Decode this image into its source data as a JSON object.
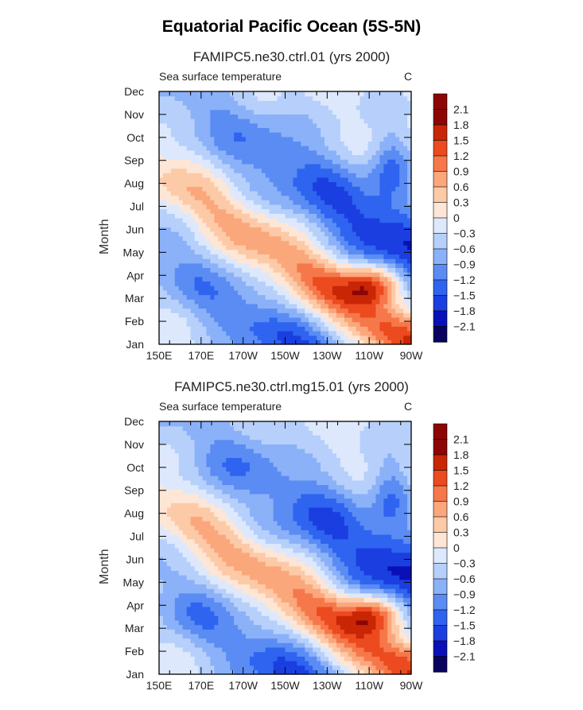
{
  "title": "Equatorial Pacific Ocean (5S-5N)",
  "chart_data": [
    {
      "type": "heatmap",
      "title": "FAMIPC5.ne30.ctrl.01 (yrs 2000)",
      "left_string": "Sea surface temperature",
      "right_string": "C",
      "ylabel": "Month",
      "x_ticks": [
        "150E",
        "170E",
        "170W",
        "150W",
        "130W",
        "110W",
        "90W"
      ],
      "x_values": [
        150,
        170,
        190,
        210,
        230,
        250,
        270
      ],
      "xlim": [
        150,
        270
      ],
      "y_ticks": [
        "Jan",
        "Feb",
        "Mar",
        "Apr",
        "May",
        "Jun",
        "Jul",
        "Aug",
        "Sep",
        "Oct",
        "Nov",
        "Dec"
      ],
      "ylim": [
        1,
        12
      ],
      "colorbar_labels": [
        "2.1",
        "1.8",
        "1.5",
        "1.2",
        "0.9",
        "0.6",
        "0.3",
        "0",
        "−0.3",
        "−0.6",
        "−0.9",
        "−1.2",
        "−1.5",
        "−1.8",
        "−2.1"
      ]
    },
    {
      "type": "heatmap",
      "title": "FAMIPC5.ne30.ctrl.mg15.01 (yrs 2000)",
      "left_string": "Sea surface temperature",
      "right_string": "C",
      "ylabel": "Month",
      "x_ticks": [
        "150E",
        "170E",
        "170W",
        "150W",
        "130W",
        "110W",
        "90W"
      ],
      "x_values": [
        150,
        170,
        190,
        210,
        230,
        250,
        270
      ],
      "xlim": [
        150,
        270
      ],
      "y_ticks": [
        "Jan",
        "Feb",
        "Mar",
        "Apr",
        "May",
        "Jun",
        "Jul",
        "Aug",
        "Sep",
        "Oct",
        "Nov",
        "Dec"
      ],
      "ylim": [
        1,
        12
      ],
      "colorbar_labels": [
        "2.1",
        "1.8",
        "1.5",
        "1.2",
        "0.9",
        "0.6",
        "0.3",
        "0",
        "−0.3",
        "−0.6",
        "−0.9",
        "−1.2",
        "−1.5",
        "−1.8",
        "−2.1"
      ]
    }
  ],
  "colors": {
    "scale": [
      "#08035f",
      "#0a10b8",
      "#1b3ee0",
      "#2e64f0",
      "#5a8cf4",
      "#8bb1f8",
      "#b6d0fb",
      "#dde8fd",
      "#fde6d5",
      "#fdcaa8",
      "#fba77c",
      "#f6784a",
      "#ec4a1f",
      "#c92606",
      "#8c0606"
    ]
  }
}
